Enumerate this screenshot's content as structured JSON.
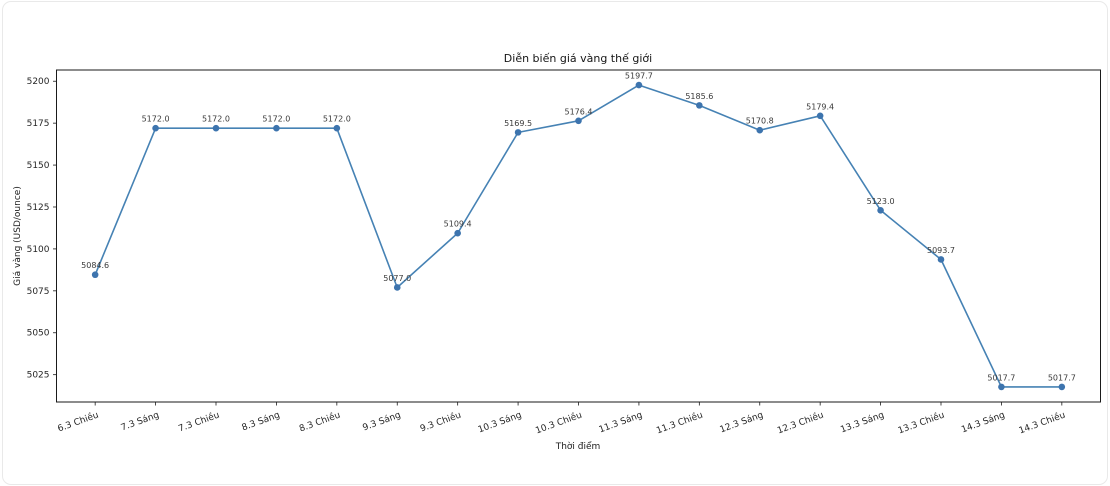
{
  "chart_data": {
    "type": "line",
    "title": "Diễn biến giá vàng thế giới",
    "xlabel": "Thời điểm",
    "ylabel": "Giá vàng (USD/ounce)",
    "categories": [
      "6.3 Chiều",
      "7.3 Sáng",
      "7.3 Chiều",
      "8.3 Sáng",
      "8.3 Chiều",
      "9.3 Sáng",
      "9.3 Chiều",
      "10.3 Sáng",
      "10.3 Chiều",
      "11.3 Sáng",
      "11.3 Chiều",
      "12.3 Sáng",
      "12.3 Chiều",
      "13.3 Sáng",
      "13.3 Chiều",
      "14.3 Sáng",
      "14.3 Chiều"
    ],
    "values": [
      5084.6,
      5172.0,
      5172.0,
      5172.0,
      5172.0,
      5077.0,
      5109.4,
      5169.5,
      5176.4,
      5197.7,
      5185.6,
      5170.8,
      5179.4,
      5123.0,
      5093.7,
      5017.7,
      5017.7
    ],
    "point_labels": [
      "5084.6",
      "5172.0",
      "5172.0",
      "5172.0",
      "5172.0",
      "5077.0",
      "5109.4",
      "5169.5",
      "5176.4",
      "5197.7",
      "5185.6",
      "5170.8",
      "5179.4",
      "5123.0",
      "5093.7",
      "5017.7",
      "5017.7"
    ],
    "yticks": [
      5025,
      5050,
      5075,
      5100,
      5125,
      5150,
      5175,
      5200
    ],
    "ylim": [
      5008.7,
      5206.7
    ],
    "x_margin": 0.04,
    "tick_label_rotation": -20,
    "grid": false,
    "legend": "none",
    "line_color": "#4682b4",
    "marker_color": "#3d74ae",
    "annotation_color": "#3a3a3a",
    "axis_color": "#1a1a1a"
  }
}
